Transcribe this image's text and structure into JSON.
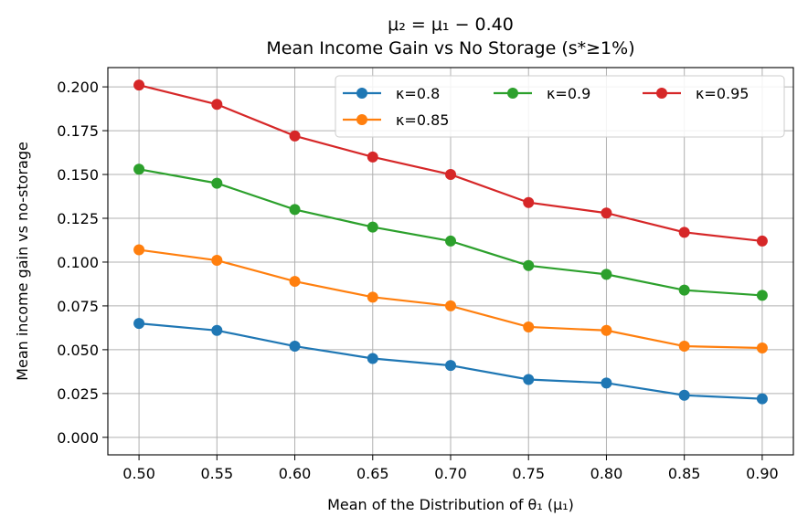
{
  "chart_data": {
    "type": "line",
    "title": "μ₂ = μ₁ − 0.40",
    "subtitle": "Mean Income Gain vs No Storage (s*≥1%)",
    "xlabel": "Mean of the Distribution of θ₁ (μ₁)",
    "ylabel": "Mean income gain vs no-storage",
    "x": [
      0.5,
      0.55,
      0.6,
      0.65,
      0.7,
      0.75,
      0.8,
      0.85,
      0.9
    ],
    "x_tick_labels": [
      "0.50",
      "0.55",
      "0.60",
      "0.65",
      "0.70",
      "0.75",
      "0.80",
      "0.85",
      "0.90"
    ],
    "y_ticks": [
      0.0,
      0.025,
      0.05,
      0.075,
      0.1,
      0.125,
      0.15,
      0.175,
      0.2
    ],
    "y_tick_labels": [
      "0.000",
      "0.025",
      "0.050",
      "0.075",
      "0.100",
      "0.125",
      "0.150",
      "0.175",
      "0.200"
    ],
    "xlim": [
      0.48,
      0.92
    ],
    "ylim": [
      -0.01,
      0.211
    ],
    "grid": true,
    "legend_position": "top-right",
    "series": [
      {
        "name": "κ=0.8",
        "color": "#1f77b4",
        "values": [
          0.065,
          0.061,
          0.052,
          0.045,
          0.041,
          0.033,
          0.031,
          0.024,
          0.022
        ]
      },
      {
        "name": "κ=0.85",
        "color": "#ff7f0e",
        "values": [
          0.107,
          0.101,
          0.089,
          0.08,
          0.075,
          0.063,
          0.061,
          0.052,
          0.051
        ]
      },
      {
        "name": "κ=0.9",
        "color": "#2ca02c",
        "values": [
          0.153,
          0.145,
          0.13,
          0.12,
          0.112,
          0.098,
          0.093,
          0.084,
          0.081
        ]
      },
      {
        "name": "κ=0.95",
        "color": "#d62728",
        "values": [
          0.201,
          0.19,
          0.172,
          0.16,
          0.15,
          0.134,
          0.128,
          0.117,
          0.112
        ]
      }
    ]
  }
}
